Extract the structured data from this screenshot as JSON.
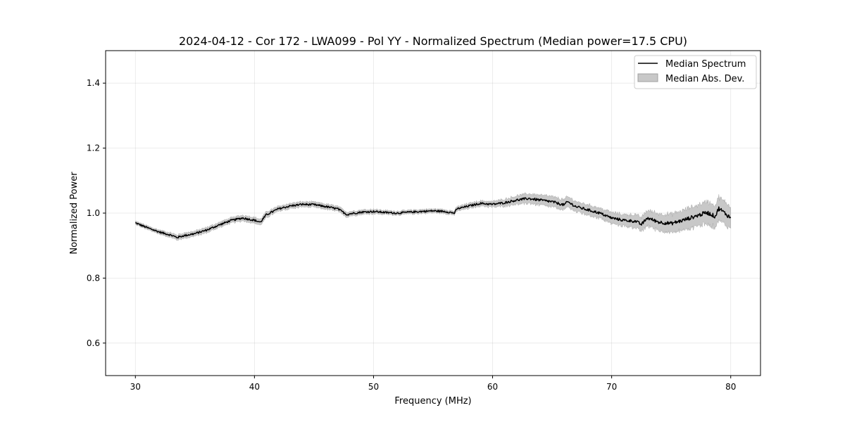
{
  "chart_data": {
    "type": "line",
    "title": "2024-04-12 - Cor 172 - LWA099 - Pol YY - Normalized Spectrum (Median power=17.5 CPU)",
    "xlabel": "Frequency (MHz)",
    "ylabel": "Normalized Power",
    "xlim": [
      27.5,
      82.5
    ],
    "ylim": [
      0.5,
      1.5
    ],
    "xticks": [
      30,
      40,
      50,
      60,
      70,
      80
    ],
    "yticks": [
      0.6,
      0.8,
      1.0,
      1.2,
      1.4
    ],
    "xtick_labels": [
      "30",
      "40",
      "50",
      "60",
      "70",
      "80"
    ],
    "ytick_labels": [
      "0.6",
      "0.8",
      "1.0",
      "1.2",
      "1.4"
    ],
    "grid": true,
    "legend": {
      "position": "top-right",
      "entries": [
        "Median Spectrum",
        "Median Abs. Dev."
      ]
    },
    "series": [
      {
        "name": "Median Spectrum",
        "color": "#000000",
        "x": [
          30,
          31,
          32,
          33,
          33.5,
          34,
          35,
          36,
          37,
          38,
          39,
          40,
          40.5,
          41,
          42,
          43,
          44,
          45,
          46,
          47,
          47.8,
          48,
          49,
          50,
          51,
          52,
          53,
          54,
          55,
          56,
          56.8,
          57,
          58,
          59,
          60,
          61,
          62,
          63,
          64,
          65,
          66,
          66.3,
          67,
          68,
          69,
          70,
          71,
          72,
          72.5,
          73,
          74,
          75,
          76,
          77,
          78,
          78.7,
          79,
          80
        ],
        "values": [
          0.97,
          0.955,
          0.942,
          0.932,
          0.925,
          0.93,
          0.937,
          0.948,
          0.963,
          0.977,
          0.985,
          0.978,
          0.972,
          0.995,
          1.013,
          1.022,
          1.027,
          1.026,
          1.02,
          1.013,
          0.995,
          0.998,
          1.003,
          1.005,
          1.002,
          1.0,
          1.003,
          1.005,
          1.007,
          1.005,
          1.0,
          1.013,
          1.022,
          1.03,
          1.027,
          1.032,
          1.04,
          1.045,
          1.04,
          1.035,
          1.025,
          1.035,
          1.02,
          1.01,
          1.0,
          0.985,
          0.978,
          0.975,
          0.965,
          0.985,
          0.972,
          0.968,
          0.978,
          0.99,
          1.002,
          0.99,
          1.015,
          0.985
        ]
      }
    ],
    "band": {
      "name": "Median Abs. Dev.",
      "color": "#c8c8c8",
      "halfwidth": [
        0.005,
        0.006,
        0.006,
        0.007,
        0.008,
        0.008,
        0.008,
        0.008,
        0.008,
        0.008,
        0.009,
        0.009,
        0.009,
        0.009,
        0.008,
        0.008,
        0.008,
        0.008,
        0.008,
        0.008,
        0.008,
        0.007,
        0.007,
        0.007,
        0.006,
        0.006,
        0.006,
        0.006,
        0.006,
        0.006,
        0.006,
        0.007,
        0.008,
        0.008,
        0.009,
        0.011,
        0.013,
        0.015,
        0.016,
        0.016,
        0.016,
        0.016,
        0.016,
        0.016,
        0.016,
        0.017,
        0.018,
        0.02,
        0.022,
        0.024,
        0.026,
        0.028,
        0.03,
        0.032,
        0.034,
        0.034,
        0.034,
        0.035
      ]
    }
  }
}
